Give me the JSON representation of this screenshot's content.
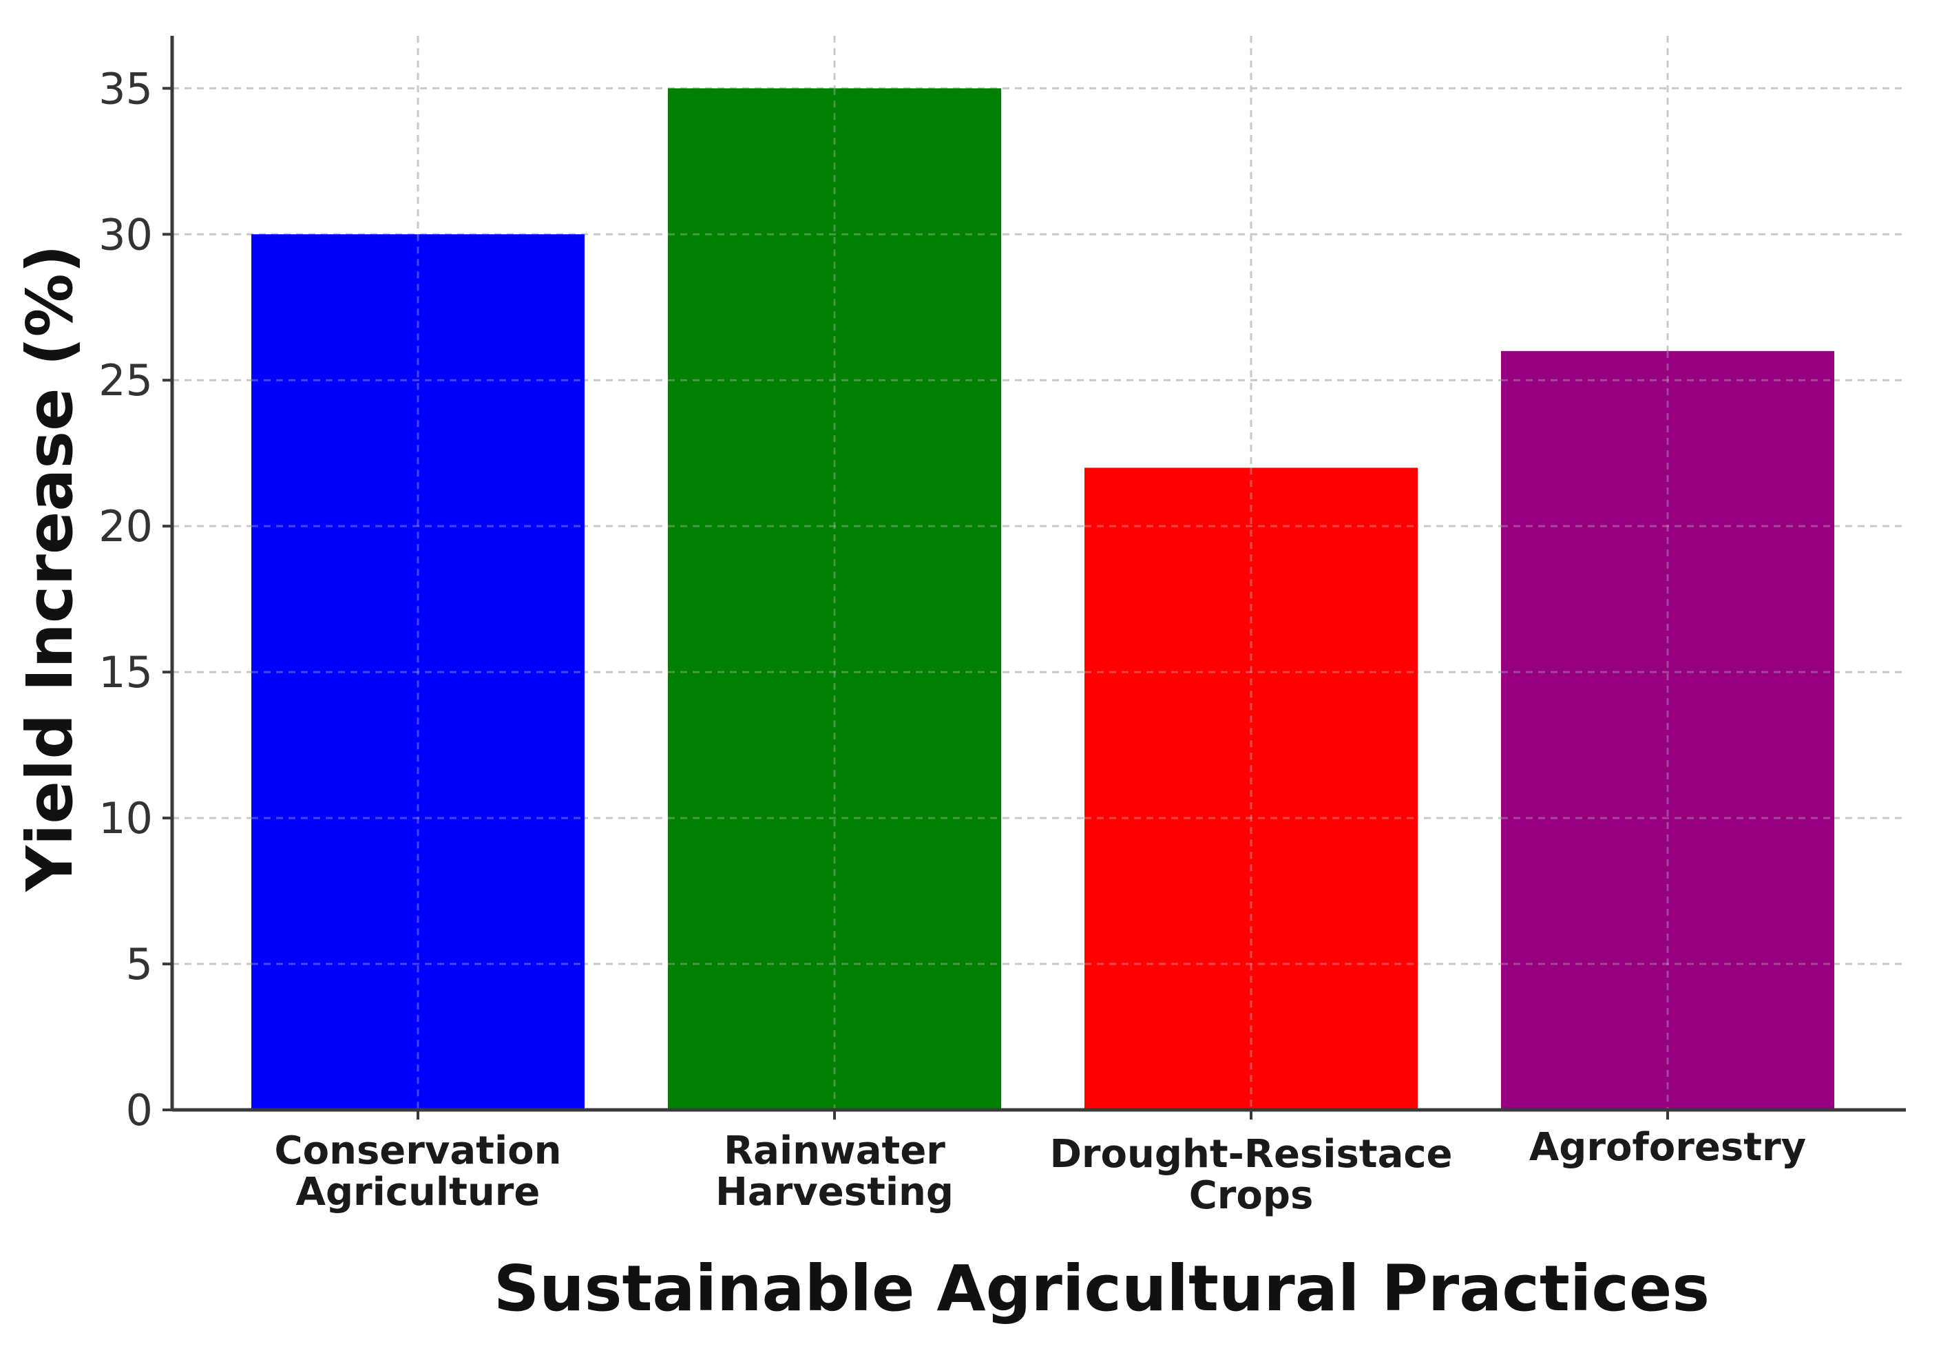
{
  "chart_data": {
    "type": "bar",
    "title": "",
    "xlabel": "Sustainable Agricultural Practices",
    "ylabel": "Yield Increase (%)",
    "categories": [
      [
        "Conservation",
        "Agriculture"
      ],
      [
        "Rainwater",
        "Harvesting"
      ],
      [
        "Drought-Resistace",
        "Crops"
      ],
      [
        "Agroforestry"
      ]
    ],
    "values": [
      30,
      35,
      22,
      26
    ],
    "colors": [
      "#0000ff",
      "#008000",
      "#ff0000",
      "#960080"
    ],
    "ylim": [
      0,
      36.8
    ],
    "yticks": [
      0,
      5,
      10,
      15,
      20,
      25,
      30,
      35
    ],
    "grid": true
  }
}
